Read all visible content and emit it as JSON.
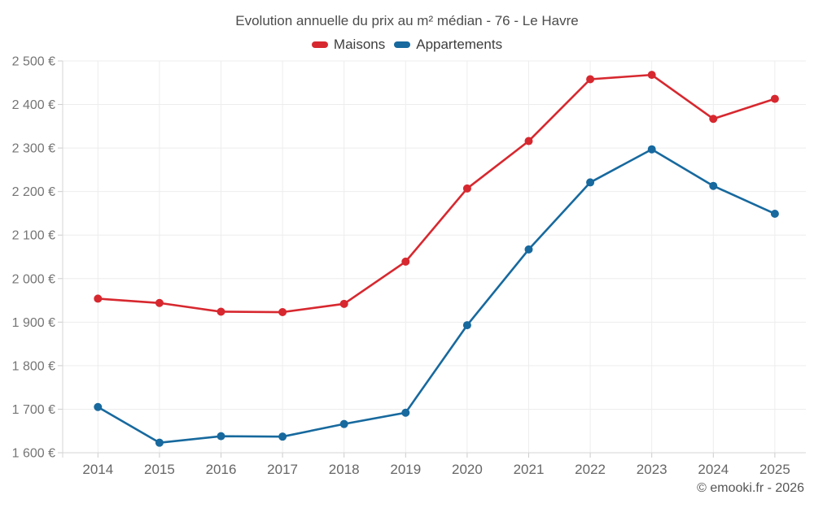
{
  "chart": {
    "title": "Evolution annuelle du prix au m² médian - 76 - Le Havre"
  },
  "legend": {
    "items": [
      {
        "label": "Maisons",
        "color": "#d7282f"
      },
      {
        "label": "Appartements",
        "color": "#17699e"
      }
    ]
  },
  "footer": {
    "text": "© emooki.fr - 2026"
  },
  "chart_data": {
    "type": "line",
    "title": "Evolution annuelle du prix au m² médian - 76 - Le Havre",
    "x": [
      "2014",
      "2015",
      "2016",
      "2017",
      "2018",
      "2019",
      "2020",
      "2021",
      "2022",
      "2023",
      "2024",
      "2025"
    ],
    "series": [
      {
        "name": "Maisons",
        "color": "#d7282f",
        "values": [
          1954,
          1944,
          1924,
          1923,
          1942,
          2039,
          2207,
          2316,
          2458,
          2468,
          2367,
          2413
        ]
      },
      {
        "name": "Appartements",
        "color": "#17699e",
        "values": [
          1705,
          1623,
          1638,
          1637,
          1666,
          1692,
          1893,
          2067,
          2221,
          2297,
          2213,
          2149
        ]
      }
    ],
    "ylim": [
      1600,
      2500
    ],
    "y_ticks": [
      {
        "value": 1600,
        "label": "1 600 €"
      },
      {
        "value": 1700,
        "label": "1 700 €"
      },
      {
        "value": 1800,
        "label": "1 800 €"
      },
      {
        "value": 1900,
        "label": "1 900 €"
      },
      {
        "value": 2000,
        "label": "2 000 €"
      },
      {
        "value": 2100,
        "label": "2 100 €"
      },
      {
        "value": 2200,
        "label": "2 200 €"
      },
      {
        "value": 2300,
        "label": "2 300 €"
      },
      {
        "value": 2400,
        "label": "2 400 €"
      },
      {
        "value": 2500,
        "label": "2 500 €"
      }
    ],
    "grid": true,
    "legend_position": "top",
    "xlabel": "",
    "ylabel": ""
  }
}
